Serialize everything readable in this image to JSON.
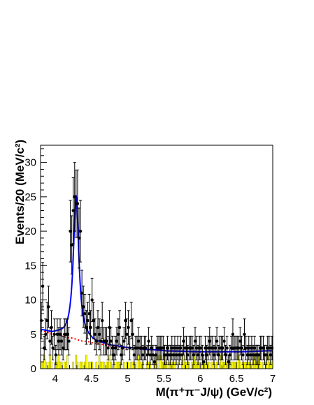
{
  "chart_data": {
    "type": "scatter",
    "title": "",
    "xlabel": "M(π⁺π⁻J/ψ) (GeV/c²)",
    "ylabel": "Events/20 (MeV/c²)",
    "xlim": [
      3.8,
      7.0
    ],
    "ylim": [
      0,
      32.5
    ],
    "x_ticks": [
      "4",
      "4.5",
      "5",
      "5.5",
      "6",
      "6.5",
      "7"
    ],
    "y_ticks": [
      "0",
      "5",
      "10",
      "15",
      "20",
      "25",
      "30"
    ],
    "grid": false,
    "legend": "none",
    "colors": {
      "data_points": "#000000",
      "fit_curve": "#0000ff",
      "background_curve": "#ff0000",
      "sideband_histogram": "#ffff00",
      "sideband_outline": "#808000"
    },
    "series": [
      {
        "kind": "data_points_with_error_bars",
        "points": [
          {
            "x": 3.81,
            "y": 7
          },
          {
            "x": 3.83,
            "y": 12
          },
          {
            "x": 3.85,
            "y": 3
          },
          {
            "x": 3.87,
            "y": 5
          },
          {
            "x": 3.89,
            "y": 7
          },
          {
            "x": 3.91,
            "y": 9
          },
          {
            "x": 3.93,
            "y": 4
          },
          {
            "x": 3.95,
            "y": 6
          },
          {
            "x": 3.97,
            "y": 3
          },
          {
            "x": 3.99,
            "y": 5
          },
          {
            "x": 4.01,
            "y": 2
          },
          {
            "x": 4.03,
            "y": 5
          },
          {
            "x": 4.05,
            "y": 4
          },
          {
            "x": 4.07,
            "y": 5
          },
          {
            "x": 4.09,
            "y": 4
          },
          {
            "x": 4.11,
            "y": 3
          },
          {
            "x": 4.13,
            "y": 5
          },
          {
            "x": 4.15,
            "y": 5
          },
          {
            "x": 4.17,
            "y": 5
          },
          {
            "x": 4.19,
            "y": 4
          },
          {
            "x": 4.21,
            "y": 20
          },
          {
            "x": 4.23,
            "y": 18
          },
          {
            "x": 4.25,
            "y": 23
          },
          {
            "x": 4.27,
            "y": 25
          },
          {
            "x": 4.29,
            "y": 24
          },
          {
            "x": 4.31,
            "y": 24
          },
          {
            "x": 4.33,
            "y": 19
          },
          {
            "x": 4.35,
            "y": 20
          },
          {
            "x": 4.37,
            "y": 11
          },
          {
            "x": 4.39,
            "y": 9
          },
          {
            "x": 4.41,
            "y": 8
          },
          {
            "x": 4.43,
            "y": 6
          },
          {
            "x": 4.45,
            "y": 7
          },
          {
            "x": 4.47,
            "y": 8
          },
          {
            "x": 4.49,
            "y": 6
          },
          {
            "x": 4.51,
            "y": 10
          },
          {
            "x": 4.53,
            "y": 7
          },
          {
            "x": 4.55,
            "y": 5
          },
          {
            "x": 4.57,
            "y": 4
          },
          {
            "x": 4.59,
            "y": 6
          },
          {
            "x": 4.61,
            "y": 5
          },
          {
            "x": 4.63,
            "y": 4
          },
          {
            "x": 4.65,
            "y": 7
          },
          {
            "x": 4.67,
            "y": 4
          },
          {
            "x": 4.69,
            "y": 4
          },
          {
            "x": 4.71,
            "y": 4
          },
          {
            "x": 4.73,
            "y": 3
          },
          {
            "x": 4.75,
            "y": 6
          },
          {
            "x": 4.77,
            "y": 4
          },
          {
            "x": 4.79,
            "y": 3
          },
          {
            "x": 4.81,
            "y": 2
          },
          {
            "x": 4.83,
            "y": 3
          },
          {
            "x": 4.85,
            "y": 4
          },
          {
            "x": 4.87,
            "y": 5
          },
          {
            "x": 4.89,
            "y": 6
          },
          {
            "x": 4.91,
            "y": 2
          },
          {
            "x": 4.93,
            "y": 3
          },
          {
            "x": 4.95,
            "y": 4
          },
          {
            "x": 4.97,
            "y": 7
          },
          {
            "x": 4.99,
            "y": 5
          },
          {
            "x": 5.01,
            "y": 6
          },
          {
            "x": 5.03,
            "y": 3
          },
          {
            "x": 5.05,
            "y": 7
          },
          {
            "x": 5.07,
            "y": 5
          },
          {
            "x": 5.09,
            "y": 2
          },
          {
            "x": 5.11,
            "y": 3
          },
          {
            "x": 5.13,
            "y": 3
          },
          {
            "x": 5.15,
            "y": 4
          },
          {
            "x": 5.17,
            "y": 3
          },
          {
            "x": 5.19,
            "y": 3
          },
          {
            "x": 5.21,
            "y": 2
          },
          {
            "x": 5.23,
            "y": 3
          },
          {
            "x": 5.25,
            "y": 3
          },
          {
            "x": 5.27,
            "y": 2
          },
          {
            "x": 5.29,
            "y": 4
          },
          {
            "x": 5.31,
            "y": 2
          },
          {
            "x": 5.33,
            "y": 3
          },
          {
            "x": 5.35,
            "y": 2
          },
          {
            "x": 5.37,
            "y": 1
          },
          {
            "x": 5.39,
            "y": 2
          },
          {
            "x": 5.41,
            "y": 3
          },
          {
            "x": 5.43,
            "y": 3
          },
          {
            "x": 5.45,
            "y": 3
          },
          {
            "x": 5.47,
            "y": 3
          },
          {
            "x": 5.49,
            "y": 3
          },
          {
            "x": 5.51,
            "y": 2
          },
          {
            "x": 5.53,
            "y": 2
          },
          {
            "x": 5.55,
            "y": 3
          },
          {
            "x": 5.57,
            "y": 2
          },
          {
            "x": 5.59,
            "y": 2
          },
          {
            "x": 5.61,
            "y": 3
          },
          {
            "x": 5.63,
            "y": 2
          },
          {
            "x": 5.65,
            "y": 3
          },
          {
            "x": 5.67,
            "y": 2
          },
          {
            "x": 5.69,
            "y": 3
          },
          {
            "x": 5.71,
            "y": 2
          },
          {
            "x": 5.73,
            "y": 3
          },
          {
            "x": 5.75,
            "y": 2
          },
          {
            "x": 5.77,
            "y": 4
          },
          {
            "x": 5.79,
            "y": 3
          },
          {
            "x": 5.81,
            "y": 3
          },
          {
            "x": 5.83,
            "y": 2
          },
          {
            "x": 5.85,
            "y": 3
          },
          {
            "x": 5.87,
            "y": 3
          },
          {
            "x": 5.89,
            "y": 3
          },
          {
            "x": 5.91,
            "y": 2
          },
          {
            "x": 5.93,
            "y": 4
          },
          {
            "x": 5.95,
            "y": 3
          },
          {
            "x": 5.97,
            "y": 2
          },
          {
            "x": 5.99,
            "y": 3
          },
          {
            "x": 6.01,
            "y": 3
          },
          {
            "x": 6.03,
            "y": 2
          },
          {
            "x": 6.05,
            "y": 1
          },
          {
            "x": 6.07,
            "y": 3
          },
          {
            "x": 6.09,
            "y": 2
          },
          {
            "x": 6.11,
            "y": 3
          },
          {
            "x": 6.13,
            "y": 4
          },
          {
            "x": 6.15,
            "y": 3
          },
          {
            "x": 6.17,
            "y": 3
          },
          {
            "x": 6.19,
            "y": 2
          },
          {
            "x": 6.21,
            "y": 3
          },
          {
            "x": 6.23,
            "y": 4
          },
          {
            "x": 6.25,
            "y": 2
          },
          {
            "x": 6.27,
            "y": 3
          },
          {
            "x": 6.29,
            "y": 3
          },
          {
            "x": 6.31,
            "y": 3
          },
          {
            "x": 6.33,
            "y": 4
          },
          {
            "x": 6.35,
            "y": 2
          },
          {
            "x": 6.37,
            "y": 3
          },
          {
            "x": 6.39,
            "y": 1
          },
          {
            "x": 6.41,
            "y": 2
          },
          {
            "x": 6.43,
            "y": 3
          },
          {
            "x": 6.45,
            "y": 5
          },
          {
            "x": 6.47,
            "y": 3
          },
          {
            "x": 6.49,
            "y": 3
          },
          {
            "x": 6.51,
            "y": 3
          },
          {
            "x": 6.53,
            "y": 3
          },
          {
            "x": 6.55,
            "y": 4
          },
          {
            "x": 6.57,
            "y": 3
          },
          {
            "x": 6.59,
            "y": 2
          },
          {
            "x": 6.61,
            "y": 5
          },
          {
            "x": 6.63,
            "y": 3
          },
          {
            "x": 6.65,
            "y": 2
          },
          {
            "x": 6.67,
            "y": 3
          },
          {
            "x": 6.69,
            "y": 2
          },
          {
            "x": 6.71,
            "y": 3
          },
          {
            "x": 6.73,
            "y": 2
          },
          {
            "x": 6.75,
            "y": 3
          },
          {
            "x": 6.77,
            "y": 2
          },
          {
            "x": 6.79,
            "y": 2
          },
          {
            "x": 6.81,
            "y": 2
          },
          {
            "x": 6.83,
            "y": 3
          },
          {
            "x": 6.85,
            "y": 3
          },
          {
            "x": 6.87,
            "y": 3
          },
          {
            "x": 6.89,
            "y": 2
          },
          {
            "x": 6.91,
            "y": 2
          },
          {
            "x": 6.93,
            "y": 3
          },
          {
            "x": 6.95,
            "y": 3
          },
          {
            "x": 6.97,
            "y": 2
          },
          {
            "x": 6.99,
            "y": 3
          }
        ]
      },
      {
        "kind": "fit_curve",
        "peak_mass": 4.29,
        "width": 0.09,
        "peak_height": 21,
        "background_curve": {
          "kind": "dashed_background",
          "points": [
            [
              3.8,
              5.5
            ],
            [
              4.0,
              5.0
            ],
            [
              4.2,
              4.5
            ],
            [
              4.4,
              4.0
            ],
            [
              4.6,
              3.6
            ],
            [
              4.8,
              3.25
            ],
            [
              5.0,
              3.0
            ],
            [
              5.3,
              2.75
            ],
            [
              5.6,
              2.55
            ],
            [
              6.0,
              2.45
            ],
            [
              6.5,
              2.45
            ],
            [
              7.0,
              2.6
            ]
          ]
        }
      },
      {
        "kind": "sideband_histogram",
        "bin_width": 0.02,
        "x_start": 3.8,
        "values": [
          1,
          1,
          2,
          1,
          0,
          1,
          2,
          1,
          0,
          0,
          1,
          1,
          2,
          1,
          1,
          0,
          1,
          1,
          2,
          0,
          0,
          0,
          1,
          0,
          2,
          1,
          0,
          1,
          1,
          0,
          1,
          2,
          0,
          1,
          1,
          1,
          0,
          0,
          1,
          0,
          2,
          1,
          1,
          1,
          0,
          1,
          1,
          2,
          1,
          0,
          1,
          0,
          1,
          1,
          1,
          1,
          0,
          1,
          0,
          1,
          1,
          0,
          1,
          1,
          1,
          1,
          0,
          2,
          1,
          1,
          1,
          0,
          0,
          1,
          1,
          1,
          0,
          0,
          1,
          1,
          2,
          0,
          2,
          1,
          1,
          2,
          1,
          1,
          0,
          1,
          1,
          1,
          1,
          0,
          1,
          0,
          0,
          1,
          2,
          1,
          1,
          1,
          1,
          0,
          1,
          1,
          2,
          1,
          1,
          1,
          0,
          1,
          1,
          1,
          1,
          1,
          1,
          0,
          1,
          1,
          0,
          1,
          0,
          1,
          2,
          1,
          1,
          1,
          1,
          1,
          0,
          1,
          1,
          1,
          1,
          1,
          2,
          1,
          0,
          1,
          1,
          1,
          1,
          1,
          1,
          0,
          1,
          2,
          1,
          1,
          2,
          1,
          0,
          1,
          0,
          1,
          2,
          1,
          1,
          1
        ]
      }
    ]
  }
}
